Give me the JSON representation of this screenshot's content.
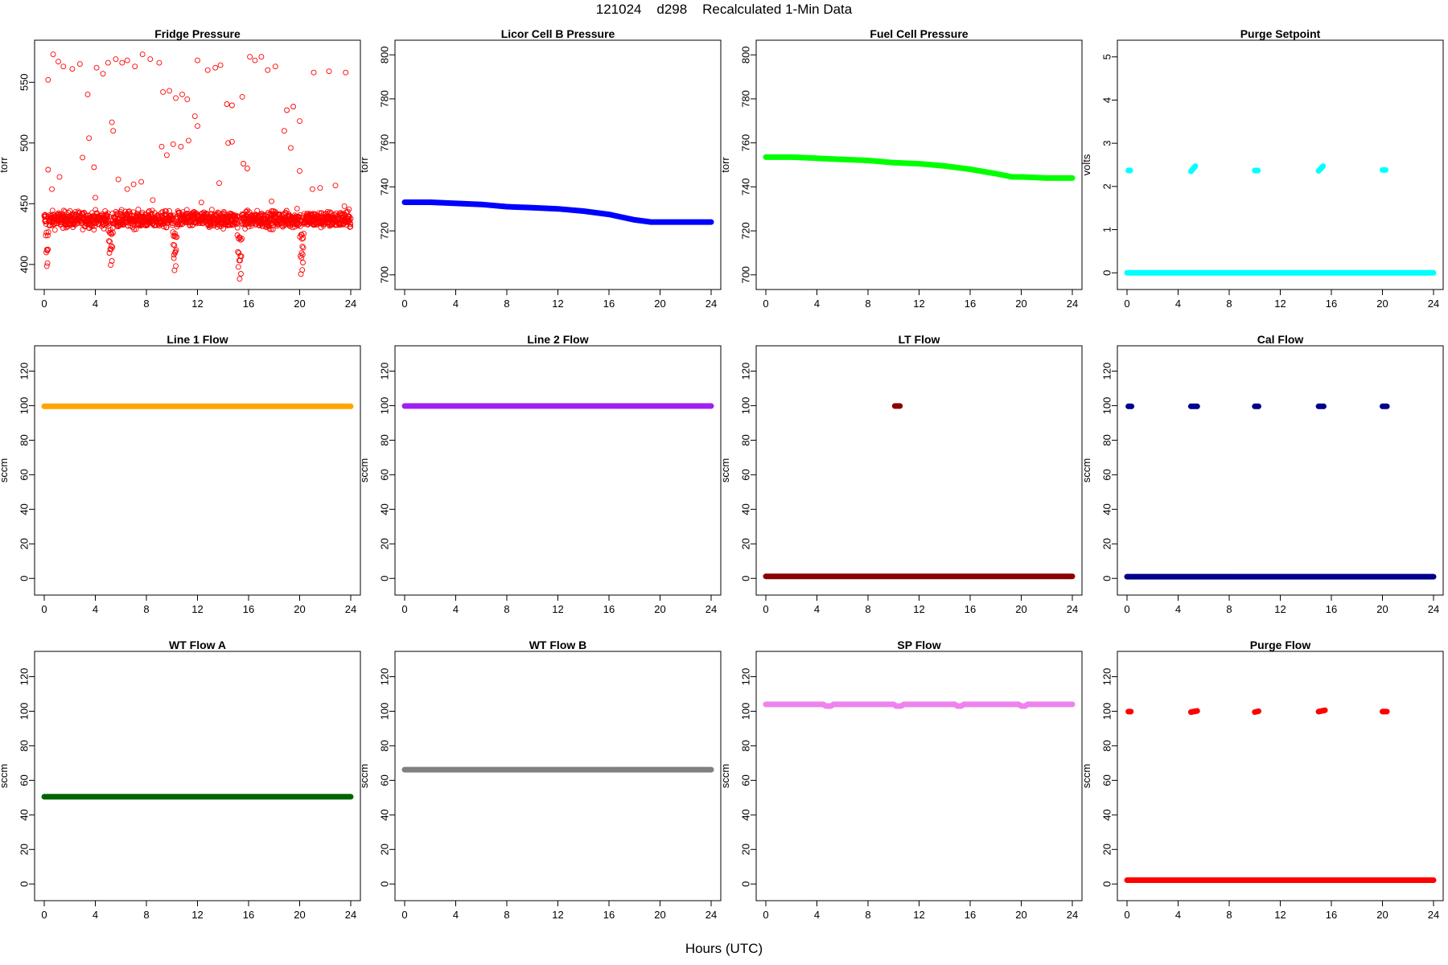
{
  "page": {
    "title": "121024    d298    Recalculated 1-Min Data",
    "xlabel": "Hours (UTC)"
  },
  "chart_data": [
    {
      "type": "scatter",
      "title": "Fridge Pressure",
      "xlabel": "",
      "ylabel": "torr",
      "xlim": [
        0,
        24
      ],
      "ylim": [
        386,
        578
      ],
      "xticks": [
        0,
        4,
        8,
        12,
        16,
        20,
        24
      ],
      "yticks": [
        400,
        450,
        500,
        550
      ],
      "color": "#ff0000",
      "marker": "open-circle",
      "series": [
        {
          "name": "",
          "band": {
            "mean": 437,
            "noise": 7,
            "count": 1400
          },
          "dips": [
            [
              0.2,
              398
            ],
            [
              0.25,
              402
            ],
            [
              5.2,
              400
            ],
            [
              5.3,
              403
            ],
            [
              5.1,
              410
            ],
            [
              10.2,
              395
            ],
            [
              10.3,
              398
            ],
            [
              10.15,
              405
            ],
            [
              15.3,
              388
            ],
            [
              15.4,
              392
            ],
            [
              15.2,
              398
            ],
            [
              20.1,
              392
            ],
            [
              20.2,
              396
            ],
            [
              20.25,
              402
            ]
          ],
          "outliers": [
            [
              0.3,
              552
            ],
            [
              0.7,
              573
            ],
            [
              1.1,
              567
            ],
            [
              1.5,
              563
            ],
            [
              2.2,
              561
            ],
            [
              2.8,
              565
            ],
            [
              3.4,
              540
            ],
            [
              4.1,
              562
            ],
            [
              4.6,
              557
            ],
            [
              5.0,
              566
            ],
            [
              5.6,
              569
            ],
            [
              6.1,
              566
            ],
            [
              6.5,
              568
            ],
            [
              7.1,
              563
            ],
            [
              7.7,
              573
            ],
            [
              8.3,
              569
            ],
            [
              9.0,
              566
            ],
            [
              9.3,
              542
            ],
            [
              9.8,
              543
            ],
            [
              10.3,
              537
            ],
            [
              10.8,
              540
            ],
            [
              11.2,
              536
            ],
            [
              12.0,
              568
            ],
            [
              12.8,
              560
            ],
            [
              13.4,
              562
            ],
            [
              13.8,
              564
            ],
            [
              14.3,
              532
            ],
            [
              14.7,
              531
            ],
            [
              15.5,
              538
            ],
            [
              16.1,
              571
            ],
            [
              16.5,
              568
            ],
            [
              17.0,
              571
            ],
            [
              17.5,
              560
            ],
            [
              18.1,
              563
            ],
            [
              19.0,
              527
            ],
            [
              19.5,
              530
            ],
            [
              20.0,
              518
            ],
            [
              21.1,
              558
            ],
            [
              22.3,
              559
            ],
            [
              23.6,
              558
            ],
            [
              0.3,
              478
            ],
            [
              0.6,
              462
            ],
            [
              1.2,
              472
            ],
            [
              3.0,
              488
            ],
            [
              3.5,
              504
            ],
            [
              3.9,
              480
            ],
            [
              5.3,
              517
            ],
            [
              5.4,
              510
            ],
            [
              5.8,
              470
            ],
            [
              6.5,
              462
            ],
            [
              7.0,
              466
            ],
            [
              7.6,
              468
            ],
            [
              9.2,
              497
            ],
            [
              9.6,
              490
            ],
            [
              10.1,
              499
            ],
            [
              10.7,
              497
            ],
            [
              11.3,
              502
            ],
            [
              11.8,
              522
            ],
            [
              12.0,
              514
            ],
            [
              13.7,
              467
            ],
            [
              14.4,
              500
            ],
            [
              14.7,
              501
            ],
            [
              15.6,
              483
            ],
            [
              15.9,
              479
            ],
            [
              18.8,
              510
            ],
            [
              19.3,
              496
            ],
            [
              20.0,
              477
            ],
            [
              21.0,
              462
            ],
            [
              21.6,
              463
            ],
            [
              22.8,
              465
            ],
            [
              23.5,
              448
            ],
            [
              4.0,
              455
            ],
            [
              8.5,
              453
            ],
            [
              12.3,
              451
            ],
            [
              17.8,
              452
            ],
            [
              19.8,
              446
            ]
          ]
        }
      ]
    },
    {
      "type": "scatter",
      "title": "Licor Cell B Pressure",
      "xlabel": "",
      "ylabel": "torr",
      "xlim": [
        0,
        24
      ],
      "ylim": [
        697,
        803
      ],
      "xticks": [
        0,
        4,
        8,
        12,
        16,
        20,
        24
      ],
      "yticks": [
        700,
        720,
        740,
        760,
        780,
        800
      ],
      "color": "#0000ff",
      "marker": "filled-line",
      "series": [
        {
          "name": "",
          "x": [
            0,
            2,
            4,
            6,
            8,
            10,
            12,
            14,
            16,
            18,
            19.3,
            20,
            22,
            24
          ],
          "y": [
            733,
            733,
            732.5,
            732,
            731,
            730.5,
            730,
            729,
            727.5,
            725,
            724,
            724,
            724,
            724
          ]
        }
      ]
    },
    {
      "type": "scatter",
      "title": "Fuel Cell Pressure",
      "xlabel": "",
      "ylabel": "torr",
      "xlim": [
        0,
        24
      ],
      "ylim": [
        697,
        803
      ],
      "xticks": [
        0,
        4,
        8,
        12,
        16,
        20,
        24
      ],
      "yticks": [
        700,
        720,
        740,
        760,
        780,
        800
      ],
      "color": "#00ff00",
      "marker": "filled-line",
      "series": [
        {
          "name": "",
          "x": [
            0,
            2,
            4,
            6,
            8,
            10,
            12,
            14,
            16,
            18,
            19.3,
            20,
            22,
            24
          ],
          "y": [
            753.5,
            753.5,
            753,
            752.5,
            752,
            751,
            750.5,
            749.5,
            748,
            746,
            744.5,
            744.5,
            744,
            744
          ]
        }
      ]
    },
    {
      "type": "scatter",
      "title": "Purge Setpoint",
      "xlabel": "",
      "ylabel": "volts",
      "xlim": [
        0,
        24
      ],
      "ylim": [
        -0.2,
        5.2
      ],
      "xticks": [
        0,
        4,
        8,
        12,
        16,
        20,
        24
      ],
      "yticks": [
        0,
        1,
        2,
        3,
        4,
        5
      ],
      "color": "#00ffff",
      "marker": "filled-line",
      "series": [
        {
          "name": "",
          "x": [
            0,
            24
          ],
          "y": [
            0,
            0
          ],
          "clusters": [
            [
              0.1,
              0.25,
              2.37,
              2.37
            ],
            [
              5.0,
              5.35,
              2.35,
              2.47
            ],
            [
              10.0,
              10.25,
              2.37,
              2.37
            ],
            [
              15.0,
              15.35,
              2.36,
              2.47
            ],
            [
              20.0,
              20.25,
              2.38,
              2.38
            ]
          ]
        }
      ]
    },
    {
      "type": "scatter",
      "title": "Line 1 Flow",
      "xlabel": "",
      "ylabel": "sccm",
      "xlim": [
        0,
        24
      ],
      "ylim": [
        -5,
        130
      ],
      "xticks": [
        0,
        4,
        8,
        12,
        16,
        20,
        24
      ],
      "yticks": [
        0,
        20,
        40,
        60,
        80,
        100,
        120
      ],
      "color": "#ffa500",
      "marker": "filled-line",
      "series": [
        {
          "name": "",
          "x": [
            0,
            24
          ],
          "y": [
            99.6,
            99.6
          ]
        }
      ]
    },
    {
      "type": "scatter",
      "title": "Line 2 Flow",
      "xlabel": "",
      "ylabel": "sccm",
      "xlim": [
        0,
        24
      ],
      "ylim": [
        -5,
        130
      ],
      "xticks": [
        0,
        4,
        8,
        12,
        16,
        20,
        24
      ],
      "yticks": [
        0,
        20,
        40,
        60,
        80,
        100,
        120
      ],
      "color": "#a020f0",
      "marker": "filled-line",
      "series": [
        {
          "name": "",
          "x": [
            0,
            24
          ],
          "y": [
            99.8,
            99.8
          ]
        }
      ]
    },
    {
      "type": "scatter",
      "title": "LT Flow",
      "xlabel": "",
      "ylabel": "sccm",
      "xlim": [
        0,
        24
      ],
      "ylim": [
        -5,
        130
      ],
      "xticks": [
        0,
        4,
        8,
        12,
        16,
        20,
        24
      ],
      "yticks": [
        0,
        20,
        40,
        60,
        80,
        100,
        120
      ],
      "color": "#8b0000",
      "marker": "filled-line",
      "series": [
        {
          "name": "",
          "x": [
            0,
            24
          ],
          "y": [
            1.2,
            1.2
          ],
          "clusters": [
            [
              10.1,
              10.5,
              99.8,
              99.8
            ]
          ]
        }
      ]
    },
    {
      "type": "scatter",
      "title": "Cal Flow",
      "xlabel": "",
      "ylabel": "sccm",
      "xlim": [
        0,
        24
      ],
      "ylim": [
        -5,
        130
      ],
      "xticks": [
        0,
        4,
        8,
        12,
        16,
        20,
        24
      ],
      "yticks": [
        0,
        20,
        40,
        60,
        80,
        100,
        120
      ],
      "color": "#00008b",
      "marker": "filled-line",
      "series": [
        {
          "name": "",
          "x": [
            0,
            24
          ],
          "y": [
            1.0,
            1.0
          ],
          "clusters": [
            [
              0.1,
              0.35,
              99.6,
              99.6
            ],
            [
              5.0,
              5.5,
              99.6,
              99.6
            ],
            [
              10.0,
              10.3,
              99.6,
              99.6
            ],
            [
              15.0,
              15.4,
              99.6,
              99.6
            ],
            [
              20.0,
              20.35,
              99.6,
              99.6
            ]
          ]
        }
      ]
    },
    {
      "type": "scatter",
      "title": "WT Flow A",
      "xlabel": "",
      "ylabel": "sccm",
      "xlim": [
        0,
        24
      ],
      "ylim": [
        -5,
        130
      ],
      "xticks": [
        0,
        4,
        8,
        12,
        16,
        20,
        24
      ],
      "yticks": [
        0,
        20,
        40,
        60,
        80,
        100,
        120
      ],
      "color": "#006400",
      "marker": "filled-line",
      "series": [
        {
          "name": "",
          "x": [
            0,
            24
          ],
          "y": [
            50.5,
            50.5
          ]
        }
      ]
    },
    {
      "type": "scatter",
      "title": "WT Flow B",
      "xlabel": "",
      "ylabel": "sccm",
      "xlim": [
        0,
        24
      ],
      "ylim": [
        -5,
        130
      ],
      "xticks": [
        0,
        4,
        8,
        12,
        16,
        20,
        24
      ],
      "yticks": [
        0,
        20,
        40,
        60,
        80,
        100,
        120
      ],
      "color": "#808080",
      "marker": "filled-line",
      "series": [
        {
          "name": "",
          "x": [
            0,
            24
          ],
          "y": [
            66.2,
            66.2
          ]
        }
      ]
    },
    {
      "type": "scatter",
      "title": "SP Flow",
      "xlabel": "",
      "ylabel": "sccm",
      "xlim": [
        0,
        24
      ],
      "ylim": [
        -5,
        130
      ],
      "xticks": [
        0,
        4,
        8,
        12,
        16,
        20,
        24
      ],
      "yticks": [
        0,
        20,
        40,
        60,
        80,
        100,
        120
      ],
      "color": "#ee82ee",
      "marker": "filled-line",
      "series": [
        {
          "name": "",
          "x": [
            0,
            4.5,
            4.7,
            5.1,
            5.3,
            10.0,
            10.2,
            10.6,
            10.8,
            14.8,
            15.0,
            15.3,
            15.5,
            19.8,
            20.0,
            20.3,
            20.5,
            24
          ],
          "y": [
            104,
            104,
            103,
            103,
            104,
            104,
            103,
            103,
            104,
            104,
            103,
            103,
            104,
            104,
            103,
            103,
            104,
            104
          ]
        }
      ]
    },
    {
      "type": "scatter",
      "title": "Purge Flow",
      "xlabel": "",
      "ylabel": "sccm",
      "xlim": [
        0,
        24
      ],
      "ylim": [
        -5,
        130
      ],
      "xticks": [
        0,
        4,
        8,
        12,
        16,
        20,
        24
      ],
      "yticks": [
        0,
        20,
        40,
        60,
        80,
        100,
        120
      ],
      "color": "#ff0000",
      "marker": "filled-line",
      "series": [
        {
          "name": "",
          "x": [
            0,
            24
          ],
          "y": [
            2.2,
            2.2
          ],
          "clusters": [
            [
              0.1,
              0.3,
              99.8,
              99.8
            ],
            [
              5.0,
              5.5,
              99.5,
              100.2
            ],
            [
              10.0,
              10.3,
              99.5,
              100.0
            ],
            [
              15.0,
              15.5,
              99.8,
              100.6
            ],
            [
              20.0,
              20.35,
              99.8,
              99.8
            ]
          ]
        }
      ]
    }
  ]
}
